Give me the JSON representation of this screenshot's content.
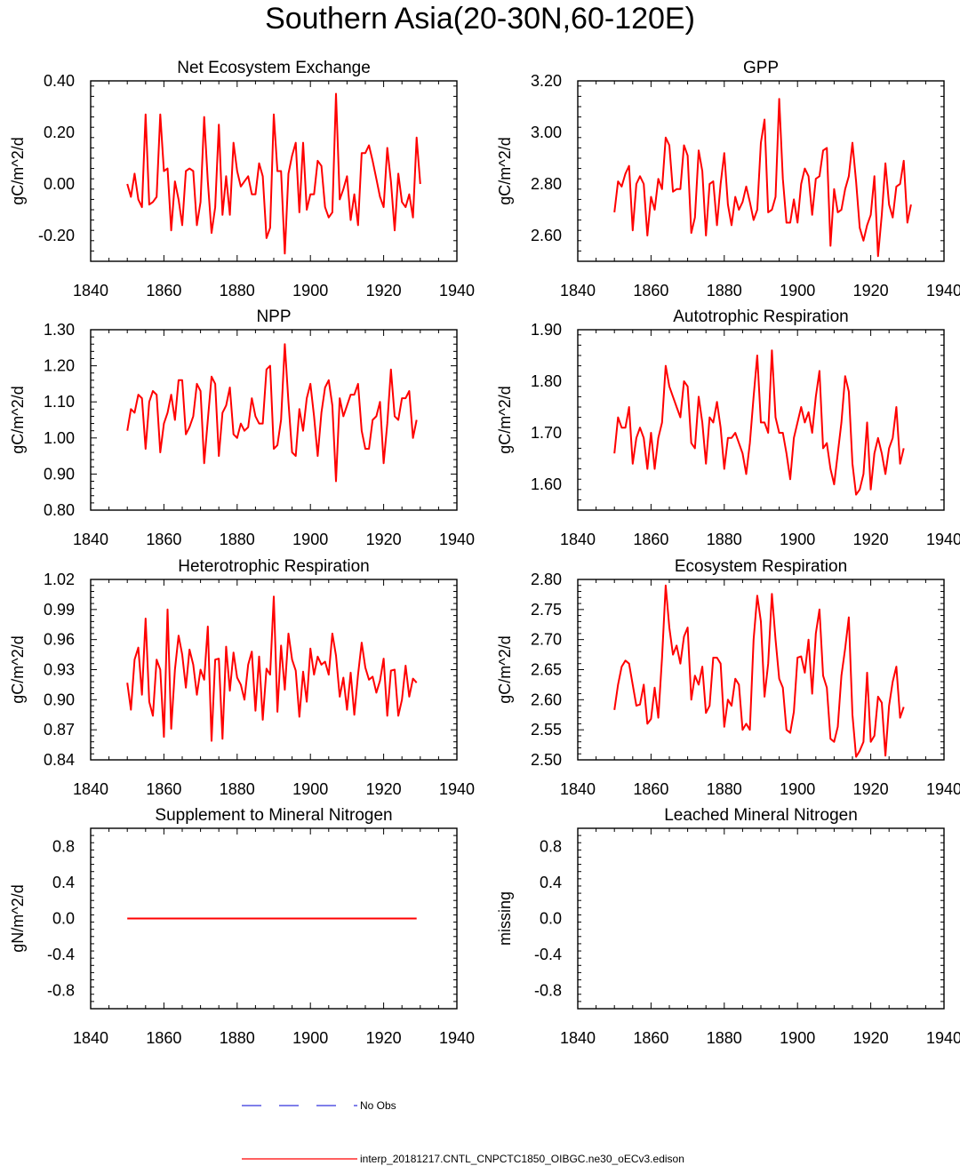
{
  "title": "Southern Asia(20-30N,60-120E)",
  "colors": {
    "model": "#ff0000",
    "obs": "#3333dd",
    "axis": "#000000"
  },
  "legend": {
    "items": [
      {
        "label": "No Obs",
        "color": "#3333dd",
        "dash": true
      },
      {
        "label": "interp_20181217.CNTL_CNPCTC1850_OIBGC.ne30_oECv3.edison",
        "color": "#ff0000",
        "dash": false
      }
    ]
  },
  "chart_data": [
    {
      "type": "line",
      "title": "Net Ecosystem Exchange",
      "ylabel": "gC/m^2/d",
      "xlabel": "",
      "xlim": [
        1840,
        1940
      ],
      "ylim": [
        -0.3,
        0.4
      ],
      "xticks": [
        1840,
        1860,
        1880,
        1900,
        1920,
        1940
      ],
      "xtick_labels": [
        "1840",
        "1860",
        "1880",
        "1900",
        "1920",
        "1940"
      ],
      "yticks": [
        -0.2,
        0.0,
        0.2,
        0.4
      ],
      "ytick_labels": [
        "-0.20",
        "0.00",
        "0.20",
        "0.40"
      ],
      "series": [
        {
          "name": "interp_20181217.CNTL_CNPCTC1850_OIBGC.ne30_oECv3.edison",
          "x_start": 1850,
          "values": [
            0.0,
            -0.05,
            0.04,
            -0.06,
            -0.09,
            0.27,
            -0.08,
            -0.07,
            -0.05,
            0.27,
            0.05,
            0.06,
            -0.18,
            0.01,
            -0.06,
            -0.16,
            0.05,
            0.06,
            0.05,
            -0.16,
            -0.07,
            0.26,
            0.01,
            -0.19,
            -0.09,
            0.23,
            -0.12,
            0.03,
            -0.12,
            0.16,
            0.05,
            -0.01,
            0.01,
            0.03,
            -0.04,
            -0.04,
            0.08,
            0.03,
            -0.21,
            -0.17,
            0.27,
            0.05,
            0.05,
            -0.27,
            0.04,
            0.11,
            0.16,
            -0.11,
            0.16,
            -0.1,
            -0.04,
            -0.04,
            0.09,
            0.07,
            -0.09,
            -0.13,
            -0.11,
            0.35,
            -0.06,
            -0.02,
            0.03,
            -0.14,
            -0.04,
            -0.16,
            0.12,
            0.12,
            0.15,
            0.09,
            0.02,
            -0.05,
            -0.09,
            0.14,
            0.01,
            -0.18,
            0.04,
            -0.07,
            -0.09,
            -0.04,
            -0.13,
            0.18,
            0.0
          ]
        }
      ]
    },
    {
      "type": "line",
      "title": "GPP",
      "ylabel": "gC/m^2/d",
      "xlabel": "",
      "xlim": [
        1840,
        1940
      ],
      "ylim": [
        2.5,
        3.2
      ],
      "xticks": [
        1840,
        1860,
        1880,
        1900,
        1920,
        1940
      ],
      "xtick_labels": [
        "1840",
        "1860",
        "1880",
        "1900",
        "1920",
        "1940"
      ],
      "yticks": [
        2.6,
        2.8,
        3.0,
        3.2
      ],
      "ytick_labels": [
        "2.60",
        "2.80",
        "3.00",
        "3.20"
      ],
      "series": [
        {
          "name": "interp_20181217.CNTL_CNPCTC1850_OIBGC.ne30_oECv3.edison",
          "x_start": 1850,
          "values": [
            2.69,
            2.81,
            2.79,
            2.84,
            2.87,
            2.62,
            2.8,
            2.83,
            2.8,
            2.6,
            2.75,
            2.7,
            2.82,
            2.78,
            2.98,
            2.95,
            2.77,
            2.78,
            2.78,
            2.95,
            2.91,
            2.61,
            2.67,
            2.93,
            2.85,
            2.6,
            2.8,
            2.81,
            2.64,
            2.8,
            2.92,
            2.72,
            2.64,
            2.75,
            2.7,
            2.73,
            2.79,
            2.73,
            2.66,
            2.7,
            2.96,
            3.05,
            2.69,
            2.7,
            2.75,
            3.13,
            2.82,
            2.65,
            2.65,
            2.74,
            2.65,
            2.8,
            2.86,
            2.83,
            2.68,
            2.82,
            2.83,
            2.93,
            2.94,
            2.56,
            2.78,
            2.69,
            2.7,
            2.78,
            2.83,
            2.96,
            2.81,
            2.63,
            2.58,
            2.64,
            2.68,
            2.83,
            2.52,
            2.68,
            2.88,
            2.72,
            2.67,
            2.79,
            2.8,
            2.89,
            2.65,
            2.72
          ]
        }
      ]
    },
    {
      "type": "line",
      "title": "NPP",
      "ylabel": "gC/m^2/d",
      "xlabel": "",
      "xlim": [
        1840,
        1940
      ],
      "ylim": [
        0.8,
        1.3
      ],
      "xticks": [
        1840,
        1860,
        1880,
        1900,
        1920,
        1940
      ],
      "xtick_labels": [
        "1840",
        "1860",
        "1880",
        "1900",
        "1920",
        "1940"
      ],
      "yticks": [
        0.8,
        0.9,
        1.0,
        1.1,
        1.2,
        1.3
      ],
      "ytick_labels": [
        "0.80",
        "0.90",
        "1.00",
        "1.10",
        "1.20",
        "1.30"
      ],
      "series": [
        {
          "name": "interp_20181217.CNTL_CNPCTC1850_OIBGC.ne30_oECv3.edison",
          "x_start": 1850,
          "values": [
            1.02,
            1.08,
            1.07,
            1.12,
            1.11,
            0.97,
            1.1,
            1.13,
            1.12,
            0.96,
            1.04,
            1.07,
            1.12,
            1.05,
            1.16,
            1.16,
            1.01,
            1.03,
            1.06,
            1.15,
            1.13,
            0.93,
            1.05,
            1.17,
            1.15,
            0.95,
            1.07,
            1.09,
            1.14,
            1.01,
            1.0,
            1.04,
            1.02,
            1.03,
            1.11,
            1.06,
            1.04,
            1.04,
            1.19,
            1.2,
            0.97,
            0.98,
            1.05,
            1.26,
            1.1,
            0.96,
            0.95,
            1.08,
            1.02,
            1.11,
            1.15,
            1.06,
            0.95,
            1.07,
            1.14,
            1.16,
            1.09,
            0.88,
            1.11,
            1.06,
            1.09,
            1.12,
            1.12,
            1.15,
            1.02,
            0.97,
            0.97,
            1.05,
            1.06,
            1.1,
            0.93,
            1.04,
            1.19,
            1.06,
            1.05,
            1.11,
            1.11,
            1.13,
            1.0,
            1.05
          ]
        }
      ]
    },
    {
      "type": "line",
      "title": "Autotrophic Respiration",
      "ylabel": "gC/m^2/d",
      "xlabel": "",
      "xlim": [
        1840,
        1940
      ],
      "ylim": [
        1.55,
        1.9
      ],
      "xticks": [
        1840,
        1860,
        1880,
        1900,
        1920,
        1940
      ],
      "xtick_labels": [
        "1840",
        "1860",
        "1880",
        "1900",
        "1920",
        "1940"
      ],
      "yticks": [
        1.6,
        1.7,
        1.8,
        1.9
      ],
      "ytick_labels": [
        "1.60",
        "1.70",
        "1.80",
        "1.90"
      ],
      "series": [
        {
          "name": "interp_20181217.CNTL_CNPCTC1850_OIBGC.ne30_oECv3.edison",
          "x_start": 1850,
          "values": [
            1.66,
            1.73,
            1.71,
            1.71,
            1.75,
            1.64,
            1.69,
            1.71,
            1.69,
            1.63,
            1.7,
            1.63,
            1.69,
            1.72,
            1.83,
            1.79,
            1.77,
            1.75,
            1.73,
            1.8,
            1.79,
            1.68,
            1.67,
            1.77,
            1.72,
            1.64,
            1.73,
            1.72,
            1.76,
            1.71,
            1.63,
            1.69,
            1.69,
            1.7,
            1.68,
            1.66,
            1.62,
            1.68,
            1.77,
            1.85,
            1.72,
            1.72,
            1.7,
            1.86,
            1.73,
            1.7,
            1.7,
            1.66,
            1.61,
            1.69,
            1.72,
            1.75,
            1.72,
            1.74,
            1.7,
            1.77,
            1.82,
            1.67,
            1.68,
            1.63,
            1.6,
            1.66,
            1.72,
            1.81,
            1.78,
            1.64,
            1.58,
            1.59,
            1.62,
            1.72,
            1.59,
            1.66,
            1.69,
            1.66,
            1.62,
            1.67,
            1.69,
            1.75,
            1.64,
            1.67
          ]
        }
      ]
    },
    {
      "type": "line",
      "title": "Heterotrophic Respiration",
      "ylabel": "gC/m^2/d",
      "xlabel": "",
      "xlim": [
        1840,
        1940
      ],
      "ylim": [
        0.84,
        1.02
      ],
      "xticks": [
        1840,
        1860,
        1880,
        1900,
        1920,
        1940
      ],
      "xtick_labels": [
        "1840",
        "1860",
        "1880",
        "1900",
        "1920",
        "1940"
      ],
      "yticks": [
        0.84,
        0.87,
        0.9,
        0.93,
        0.96,
        0.99,
        1.02
      ],
      "ytick_labels": [
        "0.84",
        "0.87",
        "0.90",
        "0.93",
        "0.96",
        "0.99",
        "1.02"
      ],
      "series": [
        {
          "name": "interp_20181217.CNTL_CNPCTC1850_OIBGC.ne30_oECv3.edison",
          "x_start": 1850,
          "values": [
            0.917,
            0.89,
            0.94,
            0.952,
            0.905,
            0.981,
            0.898,
            0.884,
            0.94,
            0.93,
            0.863,
            0.99,
            0.871,
            0.93,
            0.964,
            0.945,
            0.912,
            0.95,
            0.935,
            0.905,
            0.93,
            0.92,
            0.973,
            0.859,
            0.94,
            0.941,
            0.861,
            0.953,
            0.909,
            0.947,
            0.922,
            0.915,
            0.9,
            0.935,
            0.948,
            0.889,
            0.943,
            0.88,
            0.931,
            0.925,
            1.003,
            0.888,
            0.954,
            0.91,
            0.966,
            0.94,
            0.929,
            0.883,
            0.928,
            0.898,
            0.951,
            0.925,
            0.943,
            0.935,
            0.938,
            0.925,
            0.966,
            0.944,
            0.903,
            0.922,
            0.89,
            0.927,
            0.885,
            0.925,
            0.957,
            0.932,
            0.92,
            0.923,
            0.907,
            0.919,
            0.941,
            0.884,
            0.929,
            0.93,
            0.884,
            0.9,
            0.934,
            0.903,
            0.921,
            0.917
          ]
        }
      ]
    },
    {
      "type": "line",
      "title": "Ecosystem Respiration",
      "ylabel": "gC/m^2/d",
      "xlabel": "",
      "xlim": [
        1840,
        1940
      ],
      "ylim": [
        2.5,
        2.8
      ],
      "xticks": [
        1840,
        1860,
        1880,
        1900,
        1920,
        1940
      ],
      "xtick_labels": [
        "1840",
        "1860",
        "1880",
        "1900",
        "1920",
        "1940"
      ],
      "yticks": [
        2.5,
        2.55,
        2.6,
        2.65,
        2.7,
        2.75,
        2.8
      ],
      "ytick_labels": [
        "2.50",
        "2.55",
        "2.60",
        "2.65",
        "2.70",
        "2.75",
        "2.80"
      ],
      "series": [
        {
          "name": "interp_20181217.CNTL_CNPCTC1850_OIBGC.ne30_oECv3.edison",
          "x_start": 1850,
          "values": [
            2.583,
            2.625,
            2.655,
            2.665,
            2.66,
            2.625,
            2.59,
            2.592,
            2.625,
            2.56,
            2.568,
            2.62,
            2.57,
            2.67,
            2.79,
            2.72,
            2.675,
            2.69,
            2.66,
            2.705,
            2.72,
            2.6,
            2.64,
            2.625,
            2.655,
            2.578,
            2.59,
            2.67,
            2.67,
            2.66,
            2.555,
            2.6,
            2.59,
            2.635,
            2.625,
            2.55,
            2.56,
            2.55,
            2.7,
            2.773,
            2.73,
            2.605,
            2.66,
            2.776,
            2.7,
            2.635,
            2.62,
            2.55,
            2.545,
            2.58,
            2.67,
            2.672,
            2.645,
            2.7,
            2.61,
            2.71,
            2.75,
            2.64,
            2.62,
            2.535,
            2.53,
            2.555,
            2.64,
            2.685,
            2.737,
            2.575,
            2.505,
            2.515,
            2.53,
            2.645,
            2.53,
            2.54,
            2.605,
            2.595,
            2.507,
            2.59,
            2.63,
            2.655,
            2.57,
            2.588
          ]
        }
      ]
    },
    {
      "type": "line",
      "title": "Supplement to Mineral Nitrogen",
      "ylabel": "gN/m^2/d",
      "xlabel": "",
      "xlim": [
        1840,
        1940
      ],
      "ylim": [
        -1.0,
        1.0
      ],
      "xticks": [
        1840,
        1860,
        1880,
        1900,
        1920,
        1940
      ],
      "xtick_labels": [
        "1840",
        "1860",
        "1880",
        "1900",
        "1920",
        "1940"
      ],
      "yticks": [
        -0.8,
        -0.4,
        0.0,
        0.4,
        0.8
      ],
      "ytick_labels": [
        "-0.8",
        "-0.4",
        "0.0",
        "0.4",
        "0.8"
      ],
      "series": [
        {
          "name": "interp_20181217.CNTL_CNPCTC1850_OIBGC.ne30_oECv3.edison",
          "x": [
            1850,
            1929
          ],
          "values": [
            0.0,
            0.0
          ]
        }
      ]
    },
    {
      "type": "line",
      "title": "Leached Mineral Nitrogen",
      "ylabel": "missing",
      "xlabel": "",
      "xlim": [
        1840,
        1940
      ],
      "ylim": [
        -1.0,
        1.0
      ],
      "xticks": [
        1840,
        1860,
        1880,
        1900,
        1920,
        1940
      ],
      "xtick_labels": [
        "1840",
        "1860",
        "1880",
        "1900",
        "1920",
        "1940"
      ],
      "yticks": [
        -0.8,
        -0.4,
        0.0,
        0.4,
        0.8
      ],
      "ytick_labels": [
        "-0.8",
        "-0.4",
        "0.0",
        "0.4",
        "0.8"
      ],
      "series": []
    }
  ]
}
